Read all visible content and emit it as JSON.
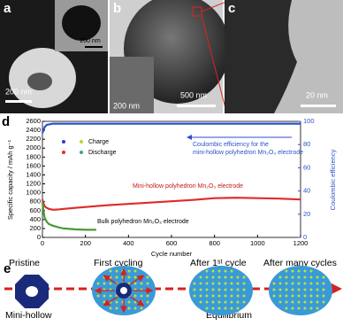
{
  "panels": {
    "a": {
      "label": "a",
      "scale_bar": "200 nm",
      "inset_scale_bar": "200 nm"
    },
    "b": {
      "label": "b",
      "scale_bar": "500 nm",
      "inset_scale_bar": "200 nm"
    },
    "c": {
      "label": "c",
      "scale_bar": "20 nm"
    },
    "e": {
      "label": "e",
      "stages": [
        "Pristine",
        "First cycling",
        "After 1ˢᵗ cycle",
        "After many cycles"
      ],
      "captions": [
        "Mini-hollow",
        "Equilibrium"
      ]
    }
  },
  "chart_data": {
    "type": "line",
    "panel_label": "d",
    "xlabel": "Cycle number",
    "ylabel": "Specific capacity / mAh g⁻¹",
    "y2label": "Coulombic efficiency",
    "xlim": [
      0,
      1200
    ],
    "xticks": [
      0,
      200,
      400,
      600,
      800,
      1000,
      1200
    ],
    "ylim": [
      0,
      2600
    ],
    "yticks": [
      0,
      200,
      400,
      600,
      800,
      1000,
      1200,
      1400,
      1600,
      1800,
      2000,
      2200,
      2400,
      2600
    ],
    "y2lim": [
      0,
      100
    ],
    "y2ticks": [
      0,
      20,
      40,
      60,
      80,
      100
    ],
    "legend": [
      {
        "label": "Charge",
        "colors": [
          "#2a3fc8",
          "#b8d040"
        ]
      },
      {
        "label": "Discharge",
        "colors": [
          "#e02a2a",
          "#40a090"
        ]
      }
    ],
    "annotations": [
      "Coulombic efficiency for the",
      "mini-hollow polyhedron Mn₂O₃ electrode"
    ],
    "series": [
      {
        "name": "Mini-hollow polyhedron Mn₂O₃ electrode",
        "color": "#e02a2a",
        "x": [
          0,
          5,
          10,
          20,
          30,
          50,
          80,
          100,
          150,
          200,
          250,
          300,
          400,
          500,
          600,
          700,
          800,
          900,
          1000,
          1100,
          1150,
          1200
        ],
        "values": [
          850,
          760,
          700,
          660,
          640,
          620,
          630,
          640,
          660,
          680,
          700,
          720,
          750,
          780,
          810,
          840,
          880,
          890,
          880,
          870,
          860,
          850
        ]
      },
      {
        "name": "Bulk polyhedron Mn₂O₃ electrode",
        "color": "#4a9a3a",
        "x": [
          0,
          5,
          10,
          20,
          30,
          50,
          80,
          100,
          150,
          200,
          250
        ],
        "values": [
          800,
          600,
          450,
          350,
          300,
          260,
          220,
          200,
          180,
          170,
          170
        ]
      },
      {
        "name": "Coulombic efficiency",
        "color": "#2a52c8",
        "axis": "y2",
        "x": [
          0,
          10,
          20,
          50,
          100,
          200,
          400,
          600,
          800,
          1000,
          1200
        ],
        "values": [
          90,
          95,
          97,
          98,
          98,
          98,
          98,
          98,
          98,
          98,
          98
        ]
      }
    ]
  }
}
